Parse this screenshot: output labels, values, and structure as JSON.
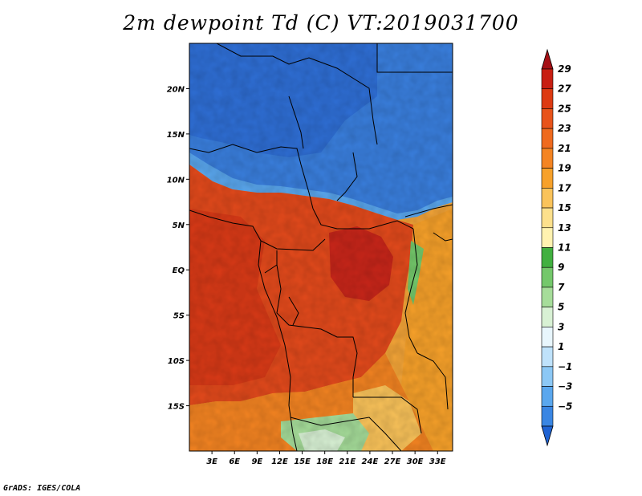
{
  "title": "2m dewpoint Td (C) VT:2019031700",
  "credit": "GrADS: IGES/COLA",
  "map": {
    "lat_ticks": [
      "20N",
      "15N",
      "10N",
      "5N",
      "EQ",
      "5S",
      "10S",
      "15S"
    ],
    "lon_ticks": [
      "3E",
      "6E",
      "9E",
      "12E",
      "15E",
      "18E",
      "21E",
      "24E",
      "27E",
      "30E",
      "33E"
    ],
    "lat_values": [
      20,
      15,
      10,
      5,
      0,
      -5,
      -10,
      -15
    ],
    "lon_values": [
      3,
      6,
      9,
      12,
      15,
      18,
      21,
      24,
      27,
      30,
      33
    ],
    "lon_range": [
      0,
      35
    ],
    "lat_range": [
      -20,
      25
    ]
  },
  "colorbar": {
    "labels": [
      "29",
      "27",
      "25",
      "23",
      "21",
      "19",
      "17",
      "15",
      "13",
      "11",
      "9",
      "7",
      "5",
      "3",
      "1",
      "−1",
      "−3",
      "−5"
    ],
    "colors": [
      "#a50f15",
      "#c81e12",
      "#dd3a12",
      "#e8531a",
      "#ef6a1e",
      "#f48422",
      "#f7a12a",
      "#fac35a",
      "#fde08c",
      "#fff2b0",
      "#41b040",
      "#74c86b",
      "#a6dd9a",
      "#d8f1d4",
      "#e8f6fd",
      "#bfe2fb",
      "#8cc8f5",
      "#5aa7ee",
      "#3a86e3",
      "#1f63d3"
    ]
  }
}
